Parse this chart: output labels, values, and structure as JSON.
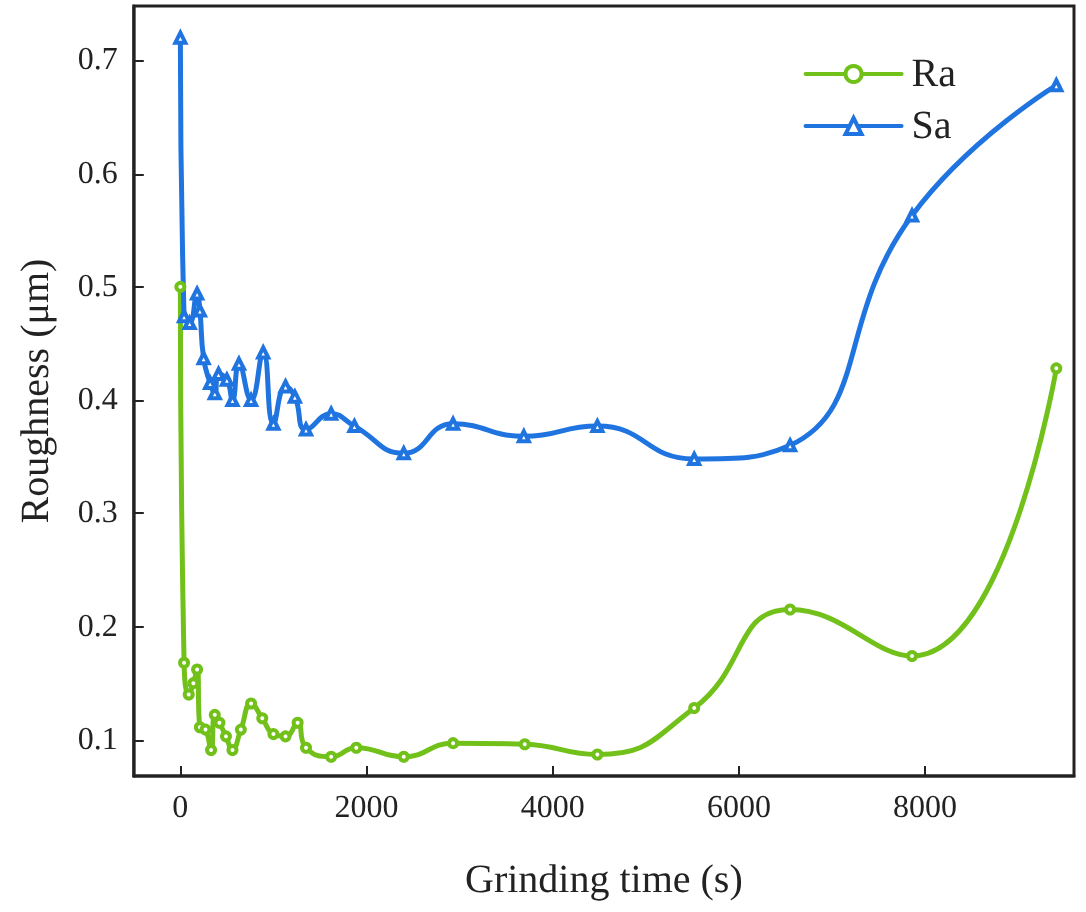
{
  "chart_data": {
    "type": "line",
    "xlabel": "Grinding time (s)",
    "ylabel": "Roughness (μm)",
    "xlim": [
      -500,
      9600
    ],
    "xticks": [
      0,
      2000,
      4000,
      6000,
      8000
    ],
    "ylim": [
      0.068,
      0.748
    ],
    "yticks": [
      0.1,
      0.2,
      0.3,
      0.4,
      0.5,
      0.6,
      0.7
    ],
    "grid": false,
    "legend": "top right",
    "line_style": "solid",
    "series": [
      {
        "name": "Ra",
        "color": "#72c11a",
        "marker": "circle",
        "x": [
          0,
          40,
          90,
          140,
          180,
          210,
          270,
          330,
          370,
          420,
          490,
          560,
          650,
          760,
          880,
          1000,
          1130,
          1260,
          1350,
          1620,
          1890,
          2400,
          2930,
          3700,
          4480,
          5520,
          6550,
          7860,
          9410
        ],
        "values": [
          0.5,
          0.168,
          0.14,
          0.15,
          0.162,
          0.111,
          0.109,
          0.091,
          0.122,
          0.115,
          0.103,
          0.091,
          0.109,
          0.132,
          0.119,
          0.105,
          0.103,
          0.115,
          0.093,
          0.085,
          0.093,
          0.085,
          0.097,
          0.096,
          0.087,
          0.128,
          0.215,
          0.174,
          0.428
        ]
      },
      {
        "name": "Sa",
        "color": "#1f74e0",
        "marker": "triangle",
        "x": [
          0,
          40,
          100,
          180,
          210,
          250,
          320,
          370,
          410,
          500,
          560,
          630,
          760,
          890,
          1000,
          1130,
          1230,
          1350,
          1620,
          1870,
          2400,
          2930,
          3690,
          4480,
          5520,
          6550,
          7860,
          9410
        ],
        "values": [
          0.72,
          0.474,
          0.468,
          0.494,
          0.479,
          0.437,
          0.415,
          0.406,
          0.423,
          0.418,
          0.4,
          0.432,
          0.4,
          0.442,
          0.379,
          0.412,
          0.403,
          0.374,
          0.388,
          0.377,
          0.353,
          0.379,
          0.368,
          0.377,
          0.348,
          0.36,
          0.563,
          0.678
        ]
      }
    ]
  }
}
